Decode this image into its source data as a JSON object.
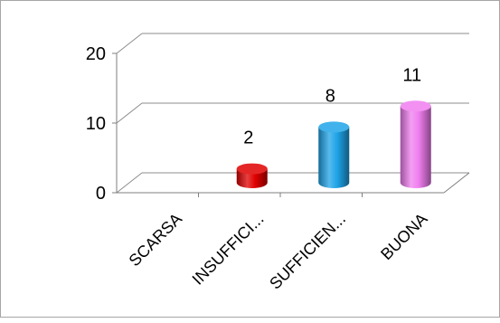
{
  "chart_data": {
    "type": "bar",
    "categories": [
      "SCARSA",
      "INSUFFICI...",
      "SUFFICIEN...",
      "BUONA"
    ],
    "values": [
      0,
      2,
      8,
      11
    ],
    "data_labels": [
      "",
      "2",
      "8",
      "11"
    ],
    "y_ticks": [
      "0",
      "10",
      "20"
    ],
    "ylim": [
      0,
      20
    ],
    "bar_shape": "cylinder",
    "three_d": true,
    "grid": true,
    "legend": "none",
    "colors": {
      "SCARSA": "#4f81bd",
      "INSUFFICI...": "#e00000",
      "SUFFICIEN...": "#1fa4e8",
      "BUONA": "#f07ef0"
    },
    "axis_color": "#7f7f7f",
    "grid_color": "#8c8c8c"
  }
}
